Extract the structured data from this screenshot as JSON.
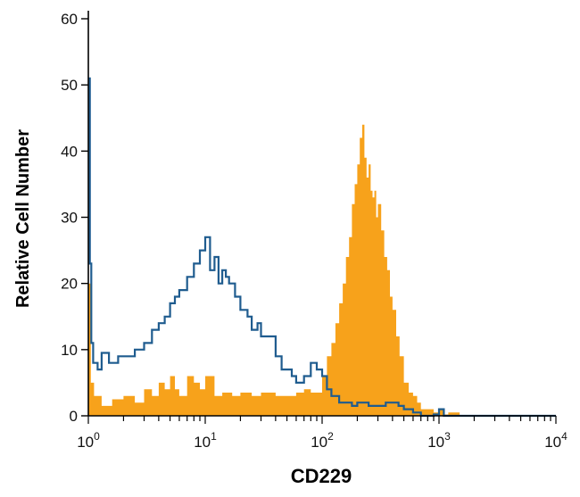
{
  "chart_data": {
    "type": "area",
    "title": "",
    "xlabel": "CD229",
    "ylabel": "Relative Cell Number",
    "xscale": "log10",
    "xlim": [
      1,
      10000
    ],
    "ylim": [
      0,
      60
    ],
    "grid": false,
    "legend": "none",
    "x_tick_labels": [
      {
        "value": 1,
        "base": "10",
        "exp": "0"
      },
      {
        "value": 10,
        "base": "10",
        "exp": "1"
      },
      {
        "value": 100,
        "base": "10",
        "exp": "2"
      },
      {
        "value": 1000,
        "base": "10",
        "exp": "3"
      },
      {
        "value": 10000,
        "base": "10",
        "exp": "4"
      }
    ],
    "y_ticks": [
      0,
      10,
      20,
      30,
      40,
      50,
      60
    ],
    "series": [
      {
        "role": "filled",
        "color": "#F7A21B",
        "x": [
          1,
          1.05,
          1.12,
          1.3,
          1.6,
          2,
          2.5,
          3,
          3.5,
          4,
          4.5,
          5,
          5.5,
          6,
          7,
          8,
          9,
          10,
          12,
          14,
          17,
          20,
          25,
          30,
          40,
          50,
          60,
          70,
          80,
          90,
          100,
          110,
          120,
          130,
          140,
          150,
          160,
          170,
          180,
          190,
          200,
          210,
          220,
          230,
          240,
          250,
          260,
          270,
          280,
          290,
          300,
          320,
          340,
          360,
          380,
          400,
          430,
          460,
          500,
          550,
          600,
          650,
          700,
          800,
          900,
          1000,
          1100,
          1200,
          1500,
          10000
        ],
        "y": [
          20,
          5,
          3,
          1.5,
          2.5,
          3,
          2,
          4,
          3,
          5,
          4,
          6,
          4,
          3,
          6,
          5,
          4,
          6,
          3,
          3.5,
          3,
          3.5,
          3,
          3.5,
          3,
          3,
          3.5,
          4,
          3.5,
          3.5,
          6,
          9,
          11,
          14,
          17,
          20,
          24,
          27,
          32,
          35,
          38,
          42,
          44,
          39,
          36,
          38,
          34,
          33,
          34,
          30,
          32,
          28,
          24,
          22,
          18,
          16,
          12,
          9,
          5,
          3.5,
          3,
          2,
          1,
          1,
          0.5,
          1,
          0.2,
          0.5,
          0,
          0
        ]
      },
      {
        "role": "outline",
        "color": "#1F5C8F",
        "x": [
          1,
          1.03,
          1.06,
          1.1,
          1.2,
          1.3,
          1.5,
          1.8,
          2,
          2.5,
          3,
          3.5,
          4,
          4.5,
          5,
          5.5,
          6,
          7,
          8,
          9,
          10,
          11,
          12,
          13,
          14,
          15,
          16,
          18,
          20,
          23,
          25,
          28,
          30,
          35,
          40,
          45,
          50,
          55,
          60,
          70,
          80,
          90,
          100,
          110,
          120,
          140,
          160,
          180,
          200,
          250,
          300,
          350,
          400,
          450,
          500,
          600,
          700,
          800,
          900,
          1000,
          1100,
          1300,
          10000
        ],
        "y": [
          51,
          23,
          11,
          8,
          7,
          9.5,
          8,
          9,
          9,
          10,
          11,
          13,
          14,
          15,
          17,
          18,
          19,
          21,
          23,
          25,
          27,
          22,
          24,
          20,
          22,
          21,
          20,
          18,
          16,
          15,
          13,
          14,
          12,
          12,
          9,
          7,
          7,
          6,
          5,
          6,
          8,
          7,
          6,
          4,
          3,
          2,
          2,
          1.5,
          2,
          1.5,
          1.5,
          2,
          2,
          1.5,
          1,
          0.5,
          0,
          0,
          0.2,
          1,
          0,
          0,
          0
        ]
      }
    ]
  }
}
